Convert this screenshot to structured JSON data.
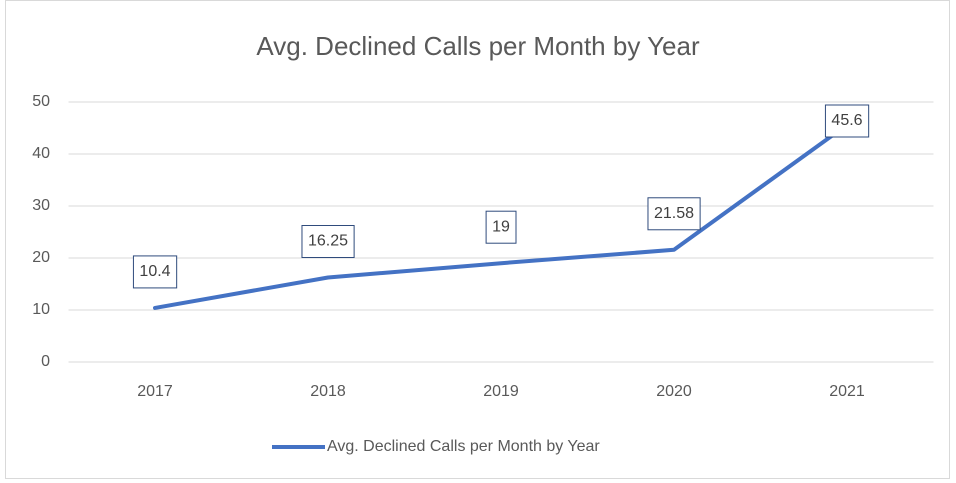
{
  "chart_data": {
    "type": "line",
    "title": "Avg. Declined Calls per Month by Year",
    "categories": [
      "2017",
      "2018",
      "2019",
      "2020",
      "2021"
    ],
    "series": [
      {
        "name": "Avg. Declined Calls per Month by Year",
        "color": "#4472c4",
        "values": [
          10.4,
          16.25,
          19,
          21.58,
          45.6
        ]
      }
    ],
    "ylim": [
      0,
      50
    ],
    "yticks": [
      0,
      10,
      20,
      30,
      40,
      50
    ],
    "grid": true,
    "legend": "bottom",
    "data_labels": true
  }
}
